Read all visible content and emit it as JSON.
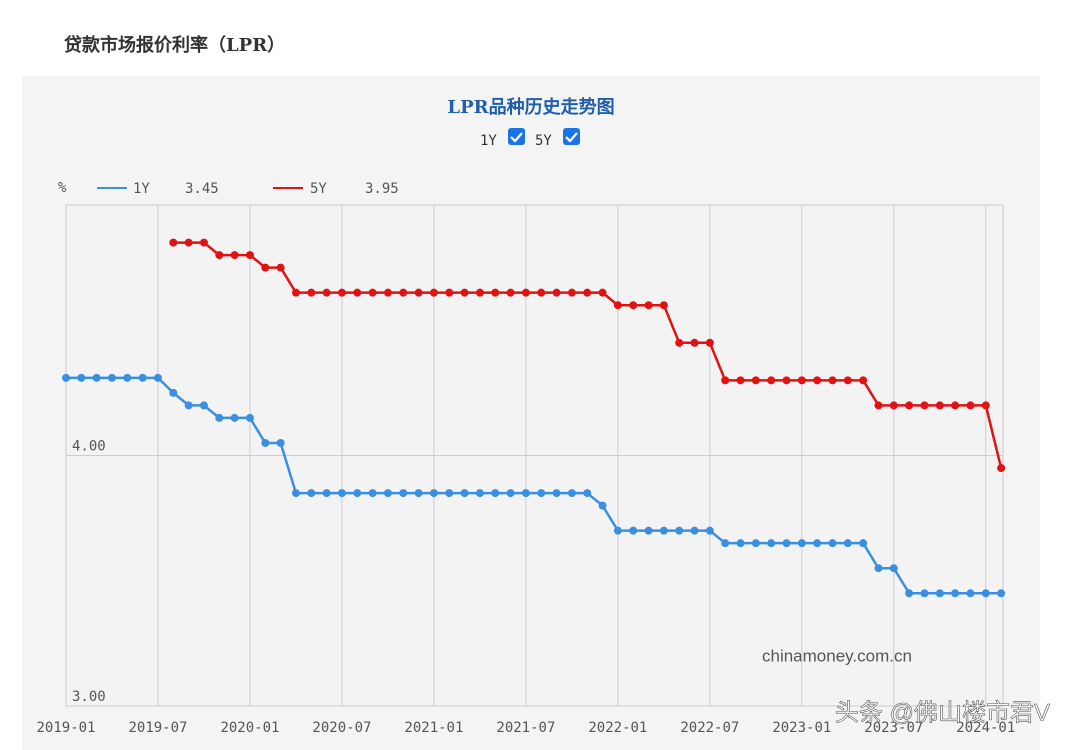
{
  "header": {
    "title": "贷款市场报价利率（LPR）"
  },
  "chart_data": {
    "type": "line",
    "title": "LPR品种历史走势图",
    "ylabel": "%",
    "watermark": "chinamoney.com.cn",
    "credit": "头条 @佛山楼市君V",
    "x": [
      "2019-01",
      "2019-02",
      "2019-03",
      "2019-04",
      "2019-05",
      "2019-06",
      "2019-07",
      "2019-08",
      "2019-09",
      "2019-10",
      "2019-11",
      "2019-12",
      "2020-01",
      "2020-02",
      "2020-03",
      "2020-04",
      "2020-05",
      "2020-06",
      "2020-07",
      "2020-08",
      "2020-09",
      "2020-10",
      "2020-11",
      "2020-12",
      "2021-01",
      "2021-02",
      "2021-03",
      "2021-04",
      "2021-05",
      "2021-06",
      "2021-07",
      "2021-08",
      "2021-09",
      "2021-10",
      "2021-11",
      "2021-12",
      "2022-01",
      "2022-02",
      "2022-03",
      "2022-04",
      "2022-05",
      "2022-06",
      "2022-07",
      "2022-08",
      "2022-09",
      "2022-10",
      "2022-11",
      "2022-12",
      "2023-01",
      "2023-02",
      "2023-03",
      "2023-04",
      "2023-05",
      "2023-06",
      "2023-07",
      "2023-08",
      "2023-09",
      "2023-10",
      "2023-11",
      "2023-12",
      "2024-01",
      "2024-02"
    ],
    "xticks": [
      "2019-01",
      "2019-07",
      "2020-01",
      "2020-07",
      "2021-01",
      "2021-07",
      "2022-01",
      "2022-07",
      "2023-01",
      "2023-07",
      "2024-01"
    ],
    "ylim": [
      3,
      5
    ],
    "yticks": [
      {
        "value": 3,
        "label": "3.00"
      },
      {
        "value": 4,
        "label": "4.00"
      }
    ],
    "grid": true,
    "series": [
      {
        "name": "1Y",
        "color": "#3b8fe0",
        "legend_value": 3.45,
        "values": [
          4.31,
          4.31,
          4.31,
          4.31,
          4.31,
          4.31,
          4.31,
          4.25,
          4.2,
          4.2,
          4.15,
          4.15,
          4.15,
          4.05,
          4.05,
          3.85,
          3.85,
          3.85,
          3.85,
          3.85,
          3.85,
          3.85,
          3.85,
          3.85,
          3.85,
          3.85,
          3.85,
          3.85,
          3.85,
          3.85,
          3.85,
          3.85,
          3.85,
          3.85,
          3.85,
          3.8,
          3.7,
          3.7,
          3.7,
          3.7,
          3.7,
          3.7,
          3.7,
          3.65,
          3.65,
          3.65,
          3.65,
          3.65,
          3.65,
          3.65,
          3.65,
          3.65,
          3.65,
          3.55,
          3.55,
          3.45,
          3.45,
          3.45,
          3.45,
          3.45,
          3.45,
          3.45
        ]
      },
      {
        "name": "5Y",
        "color": "#e01212",
        "legend_value": 3.95,
        "values": [
          null,
          null,
          null,
          null,
          null,
          null,
          null,
          4.85,
          4.85,
          4.85,
          4.8,
          4.8,
          4.8,
          4.75,
          4.75,
          4.65,
          4.65,
          4.65,
          4.65,
          4.65,
          4.65,
          4.65,
          4.65,
          4.65,
          4.65,
          4.65,
          4.65,
          4.65,
          4.65,
          4.65,
          4.65,
          4.65,
          4.65,
          4.65,
          4.65,
          4.65,
          4.6,
          4.6,
          4.6,
          4.6,
          4.45,
          4.45,
          4.45,
          4.3,
          4.3,
          4.3,
          4.3,
          4.3,
          4.3,
          4.3,
          4.3,
          4.3,
          4.3,
          4.2,
          4.2,
          4.2,
          4.2,
          4.2,
          4.2,
          4.2,
          4.2,
          3.95
        ]
      }
    ]
  }
}
